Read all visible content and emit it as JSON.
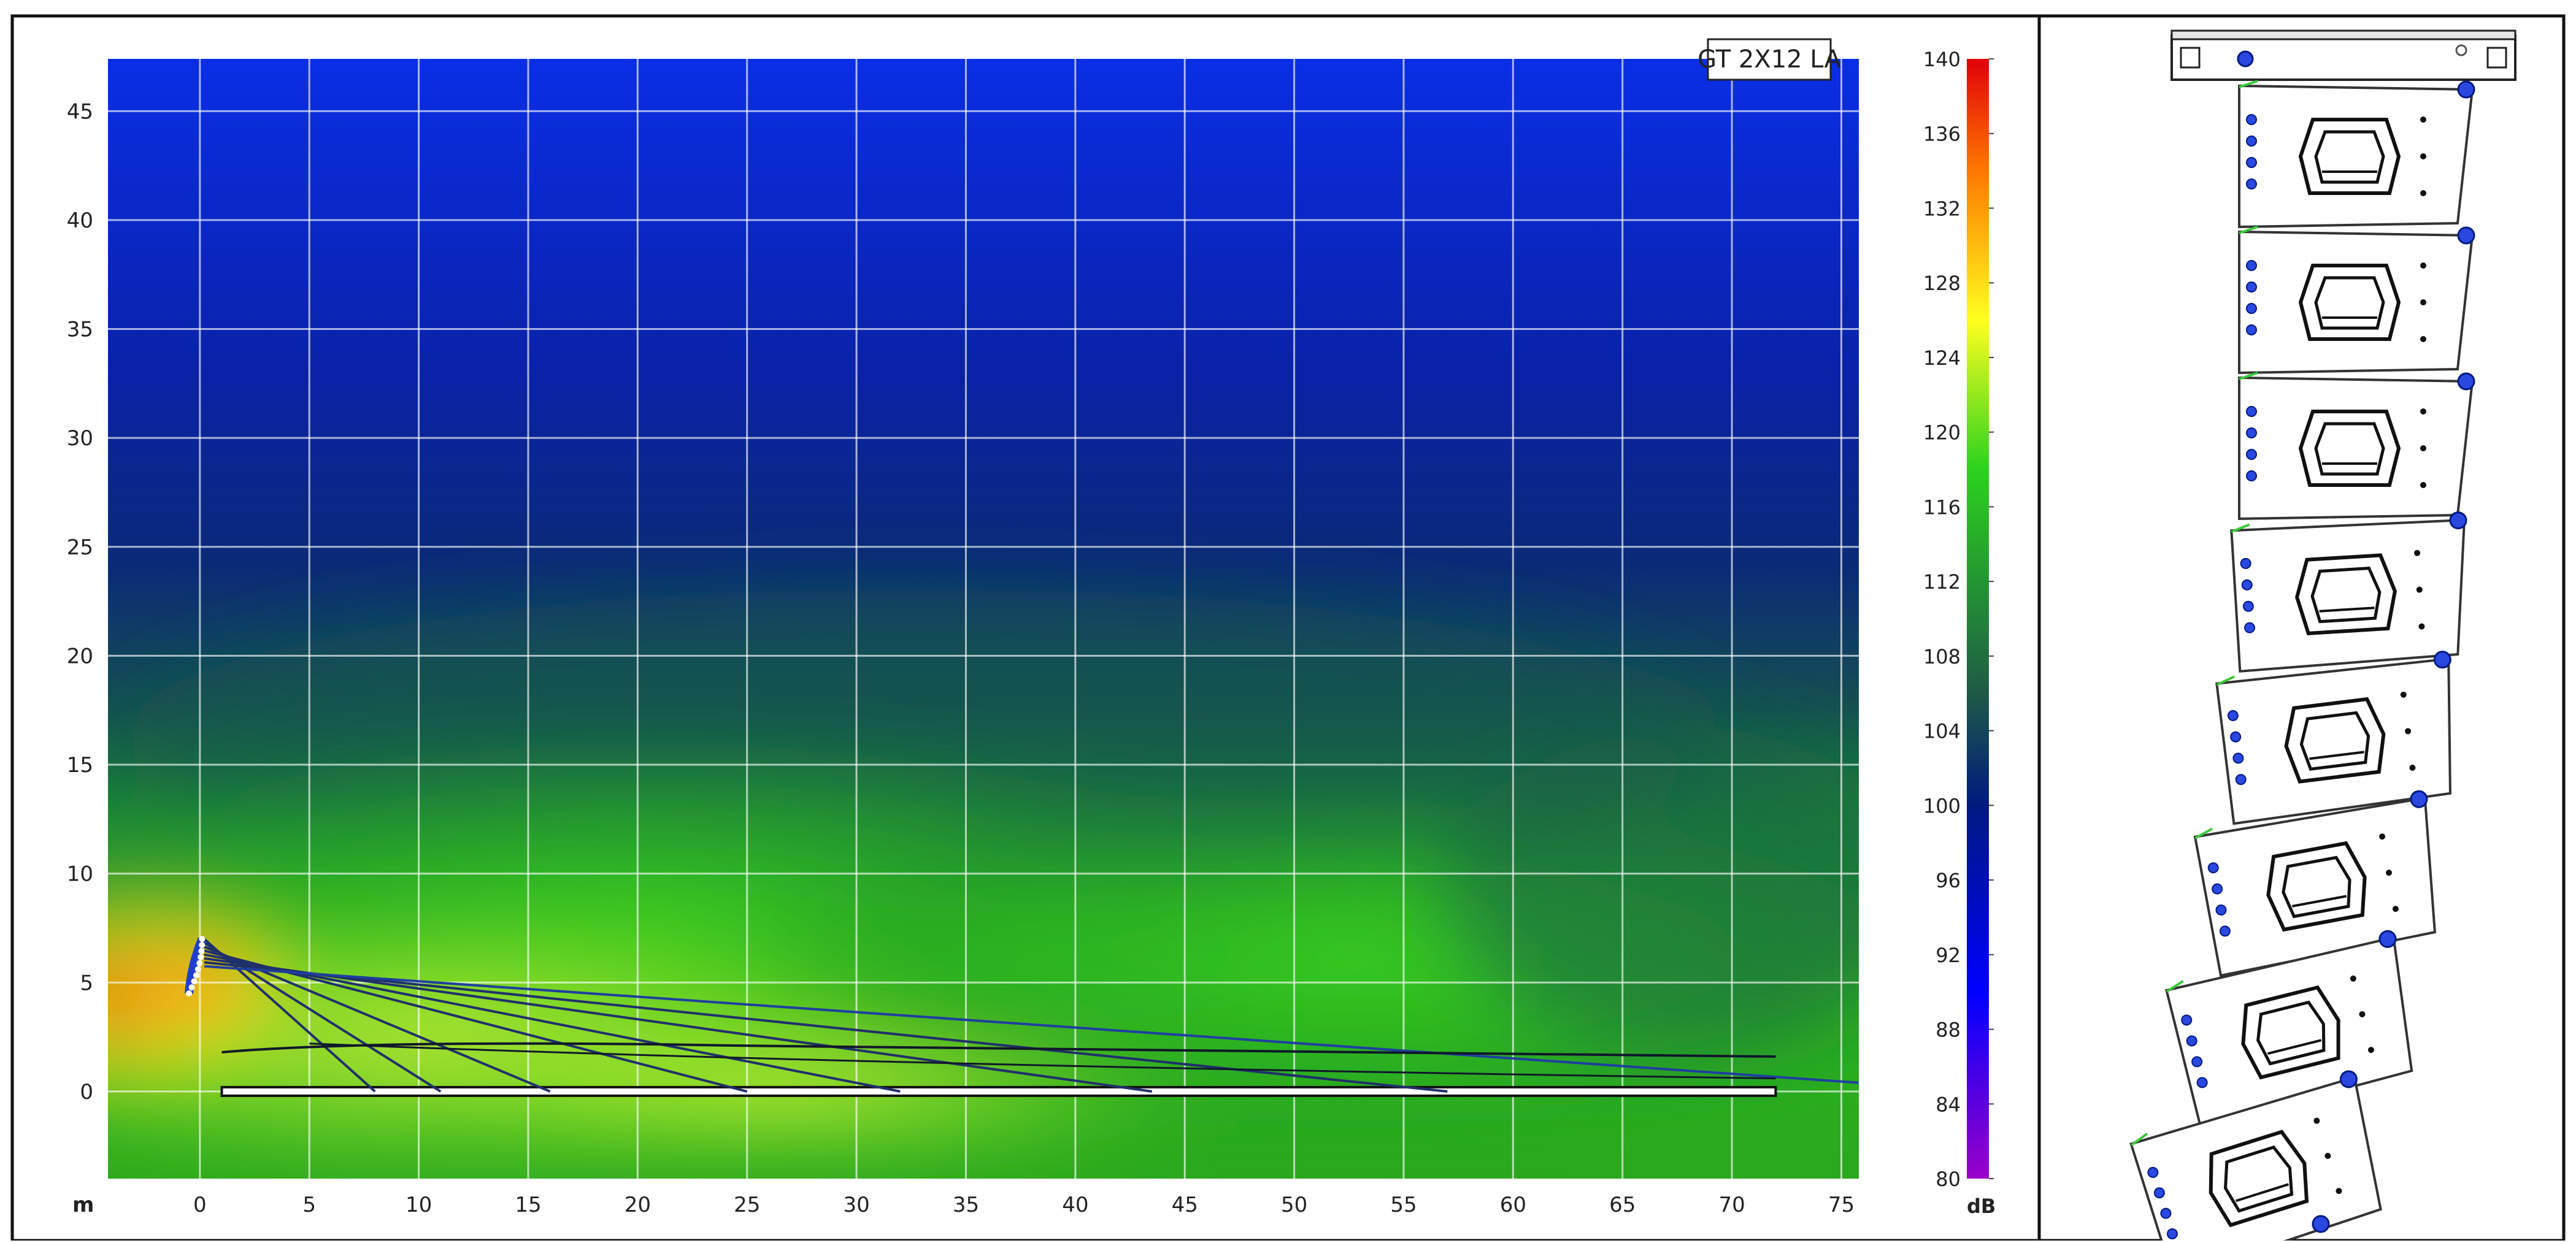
{
  "chart_data": {
    "type": "heatmap",
    "title": "GT 2X12 LA",
    "x_unit": "m",
    "xlim": [
      -4.2,
      75.8
    ],
    "ylim": [
      -4,
      47.4
    ],
    "x_ticks": [
      0,
      5,
      10,
      15,
      20,
      25,
      30,
      35,
      40,
      45,
      50,
      55,
      60,
      65,
      70,
      75
    ],
    "y_ticks": [
      0,
      5,
      10,
      15,
      20,
      25,
      30,
      35,
      40,
      45
    ],
    "grid": true,
    "colorbar": {
      "label": "dB",
      "min": 80,
      "max": 140,
      "ticks": [
        80,
        84,
        88,
        92,
        96,
        100,
        104,
        108,
        112,
        116,
        120,
        124,
        128,
        132,
        136,
        140
      ],
      "stops": [
        {
          "value": 80,
          "color": "#9b00c8"
        },
        {
          "value": 90,
          "color": "#0000ff"
        },
        {
          "value": 100,
          "color": "#001a80"
        },
        {
          "value": 106,
          "color": "#1e5a46"
        },
        {
          "value": 118,
          "color": "#2bd21e"
        },
        {
          "value": 126,
          "color": "#ffff1e"
        },
        {
          "value": 134,
          "color": "#ff7800"
        },
        {
          "value": 140,
          "color": "#e1000a"
        }
      ]
    },
    "array_position": {
      "x": 0,
      "y_top": 7,
      "y_bottom": 4.5
    },
    "listener_plane": {
      "x_start": 1,
      "x_end": 72,
      "y": 0
    },
    "ray_targets_x": [
      8,
      11,
      16,
      25,
      32,
      43.5,
      57,
      75.8
    ],
    "array_elements": 8
  }
}
